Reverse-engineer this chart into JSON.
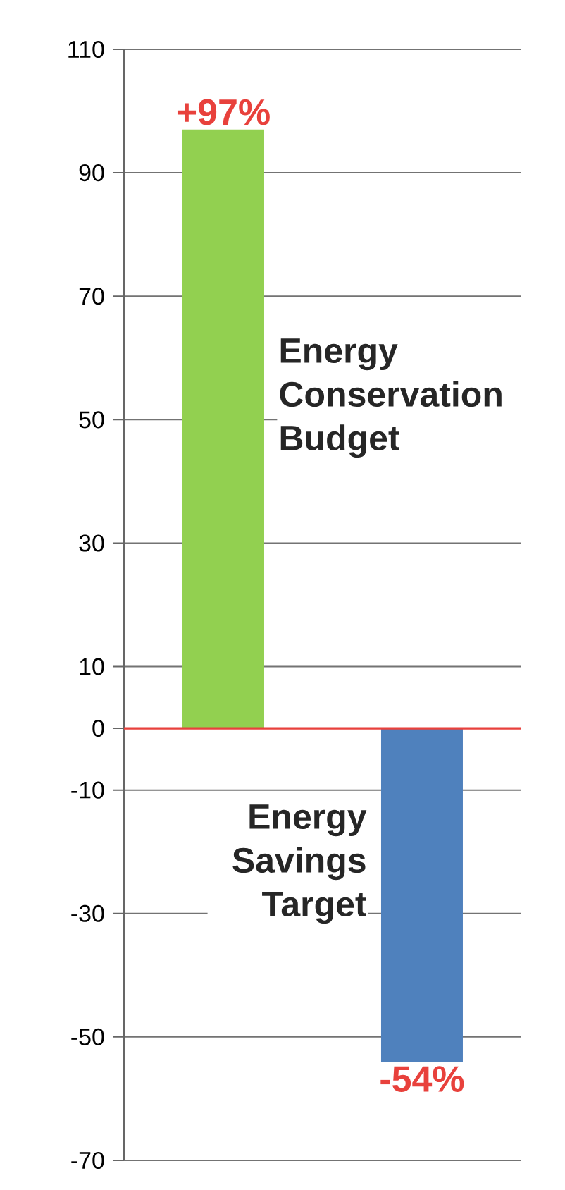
{
  "chart_data": {
    "type": "bar",
    "categories": [
      null,
      null
    ],
    "annotations": [
      "Energy Conservation Budget",
      "Energy Savings Target"
    ],
    "values": [
      97,
      -54
    ],
    "colors": [
      "#92d050",
      "#4f81bd"
    ],
    "value_labels": [
      "+97%",
      "-54%"
    ],
    "ylim": [
      -70,
      110
    ],
    "yticks": [
      -70,
      -50,
      -30,
      -10,
      0,
      10,
      30,
      50,
      70,
      90,
      110
    ],
    "grid": "y",
    "ref_lines": [
      {
        "axis": "y",
        "value": 0,
        "color": "#e8413c"
      }
    ]
  }
}
